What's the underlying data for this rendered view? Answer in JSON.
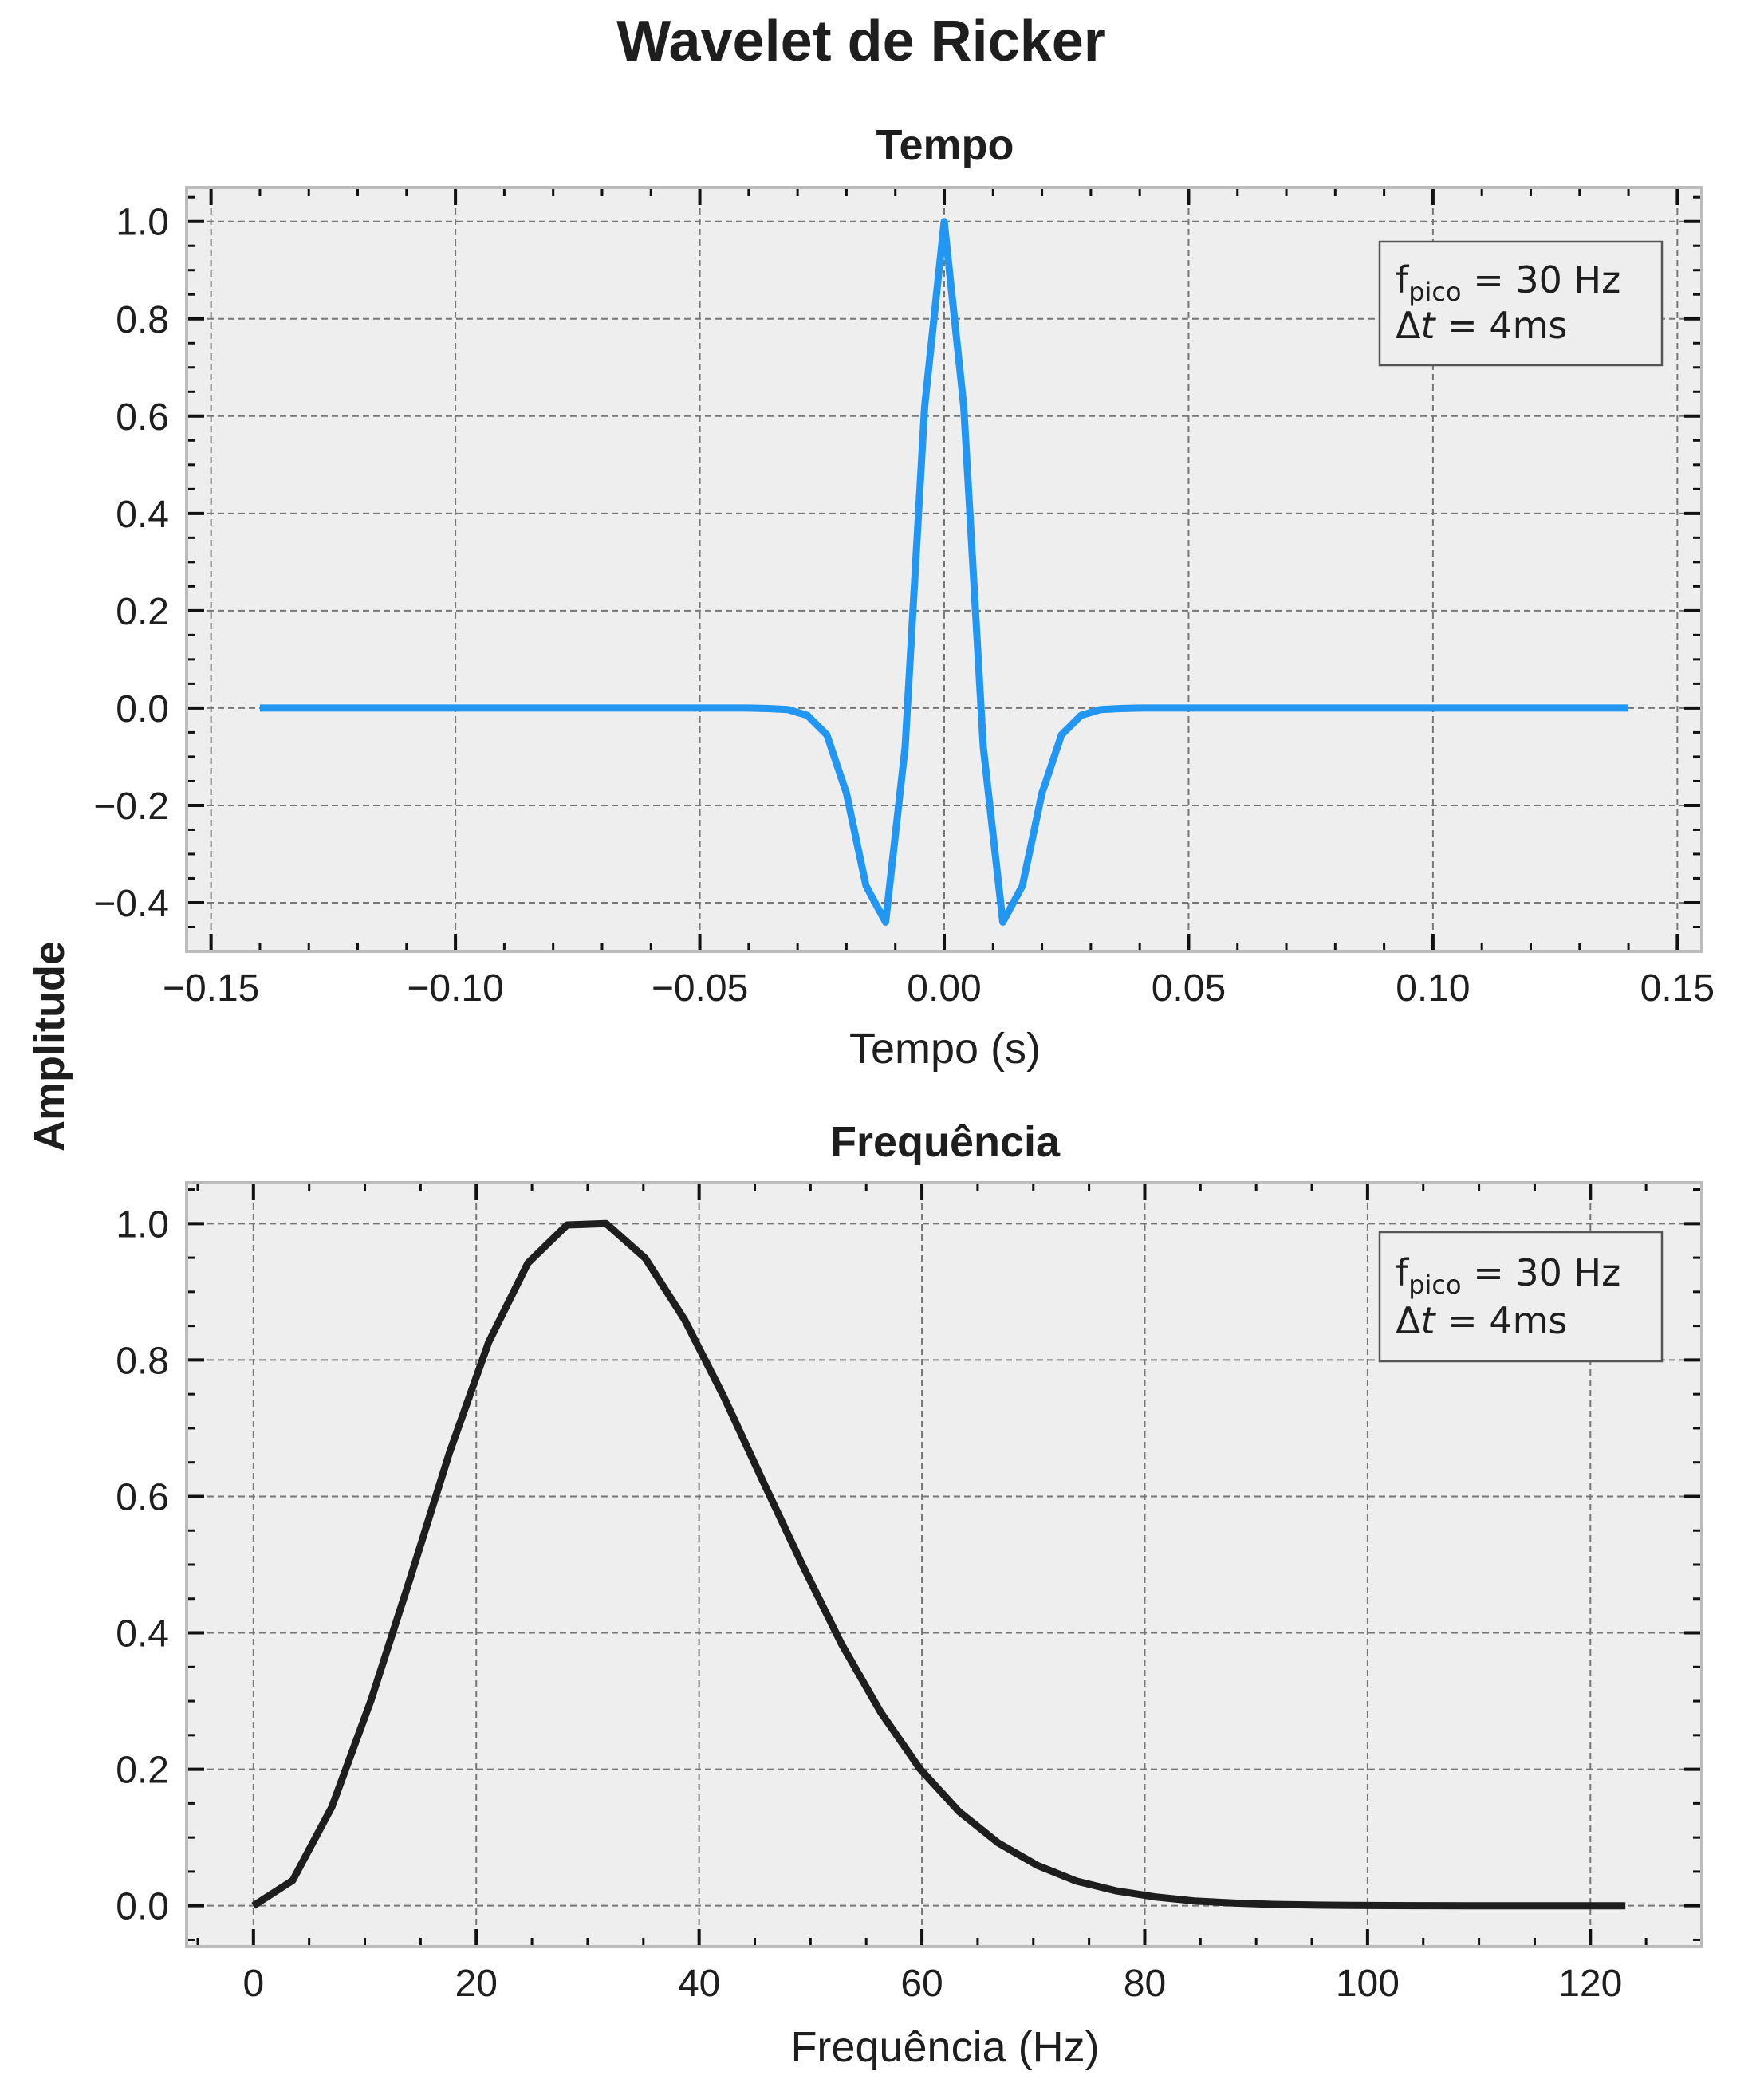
{
  "figure": {
    "title": "Wavelet de Ricker",
    "shared_ylabel": "Amplitude"
  },
  "chart_data": [
    {
      "type": "line",
      "title": "Tempo",
      "xlabel": "Tempo (s)",
      "ylabel": "Amplitude",
      "xlim": [
        -0.155,
        0.155
      ],
      "ylim": [
        -0.5,
        1.07
      ],
      "xticks": [
        -0.15,
        -0.1,
        -0.05,
        0.0,
        0.05,
        0.1,
        0.15
      ],
      "xtick_labels": [
        "−0.15",
        "−0.10",
        "−0.05",
        "0.00",
        "0.05",
        "0.10",
        "0.15"
      ],
      "yticks": [
        -0.4,
        -0.2,
        0.0,
        0.2,
        0.4,
        0.6,
        0.8,
        1.0
      ],
      "ytick_labels": [
        "−0.4",
        "−0.2",
        "0.0",
        "0.2",
        "0.4",
        "0.6",
        "0.8",
        "1.0"
      ],
      "grid": true,
      "legend": {
        "placement": "top-right",
        "line1_main": "f",
        "line1_sub": "pico",
        "line1_rest": " = 30 Hz",
        "line2_delta": "Δ",
        "line2_t": "t",
        "line2_rest": " = 4ms"
      },
      "series": [
        {
          "color": "#2196f3",
          "x": [
            -0.14,
            -0.1,
            -0.06,
            -0.04,
            -0.036,
            -0.032,
            -0.028,
            -0.024,
            -0.02,
            -0.016,
            -0.012,
            -0.008,
            -0.004,
            0.0,
            0.004,
            0.008,
            0.012,
            0.016,
            0.02,
            0.024,
            0.028,
            0.032,
            0.036,
            0.04,
            0.06,
            0.1,
            0.14
          ],
          "y": [
            0.0,
            0.0,
            0.0,
            0.0,
            -0.001,
            -0.003,
            -0.015,
            -0.055,
            -0.175,
            -0.365,
            -0.44,
            -0.08,
            0.62,
            1.0,
            0.62,
            -0.08,
            -0.44,
            -0.365,
            -0.175,
            -0.055,
            -0.015,
            -0.003,
            -0.001,
            0.0,
            0.0,
            0.0,
            0.0
          ]
        }
      ]
    },
    {
      "type": "line",
      "title": "Frequência",
      "xlabel": "Frequência (Hz)",
      "ylabel": "Amplitude",
      "xlim": [
        -6,
        130
      ],
      "ylim": [
        -0.06,
        1.06
      ],
      "xticks": [
        0,
        20,
        40,
        60,
        80,
        100,
        120
      ],
      "xtick_labels": [
        "0",
        "20",
        "40",
        "60",
        "80",
        "100",
        "120"
      ],
      "yticks": [
        0.0,
        0.2,
        0.4,
        0.6,
        0.8,
        1.0
      ],
      "ytick_labels": [
        "0.0",
        "0.2",
        "0.4",
        "0.6",
        "0.8",
        "1.0"
      ],
      "grid": true,
      "legend": {
        "placement": "top-right",
        "line1_main": "f",
        "line1_sub": "pico",
        "line1_rest": " = 30 Hz",
        "line2_delta": "Δ",
        "line2_t": "t",
        "line2_rest": " = 4ms"
      },
      "series": [
        {
          "color": "#1e1e1e",
          "x": [
            0,
            3.52,
            7.04,
            10.55,
            14.07,
            17.59,
            21.11,
            24.63,
            28.15,
            31.66,
            35.18,
            38.7,
            42.22,
            45.74,
            49.26,
            52.77,
            56.29,
            59.81,
            63.33,
            66.85,
            70.37,
            73.88,
            77.4,
            80.92,
            84.44,
            87.96,
            91.48,
            94.99,
            98.51,
            102.03,
            105.55,
            109.07,
            112.59,
            116.1,
            119.62,
            123.14
          ],
          "y": [
            0.0,
            0.037,
            0.145,
            0.301,
            0.48,
            0.664,
            0.826,
            0.942,
            0.998,
            1.0,
            0.949,
            0.859,
            0.746,
            0.622,
            0.5,
            0.384,
            0.284,
            0.201,
            0.138,
            0.092,
            0.059,
            0.036,
            0.022,
            0.013,
            0.007,
            0.004,
            0.002,
            0.001,
            0.0005,
            0.0002,
            0.0001,
            0.0,
            0.0,
            0.0,
            0.0,
            0.0
          ]
        }
      ]
    }
  ]
}
